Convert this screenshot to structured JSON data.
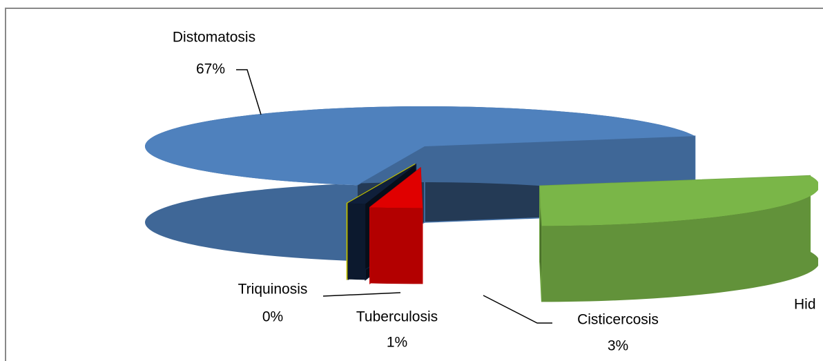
{
  "chart_data": {
    "type": "pie3d",
    "categories": [
      "Distomatosis",
      "Hid",
      "Cisticercosis",
      "Tuberculosis",
      "Triquinosis"
    ],
    "values": [
      67,
      29,
      3,
      1,
      0
    ],
    "value_labels": [
      "67%",
      null,
      "3%",
      "1%",
      "0%"
    ],
    "colors": [
      "#4f81bd",
      "#7ab648",
      "#e00000",
      "#0f1f3a",
      "#d4d400"
    ]
  }
}
